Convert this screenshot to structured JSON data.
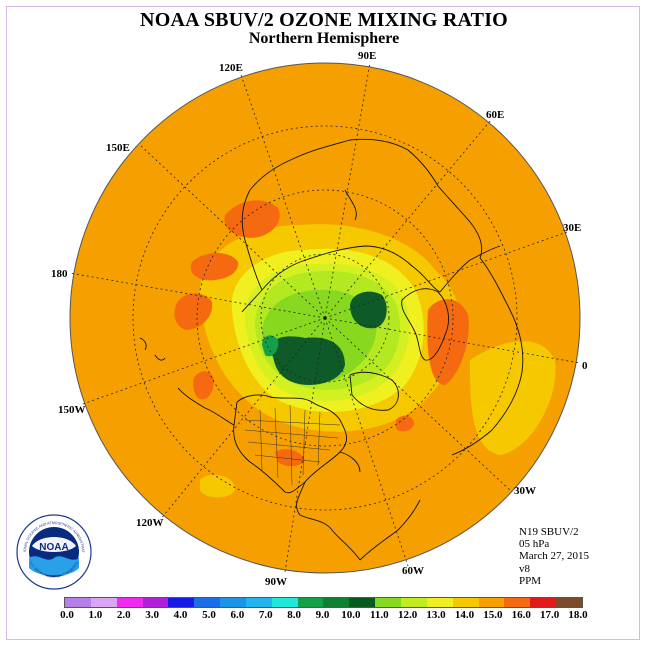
{
  "title": "NOAA SBUV/2 OZONE MIXING RATIO",
  "subtitle": "Northern Hemisphere",
  "longitude_labels": {
    "lon_90e": "90E",
    "lon_60e": "60E",
    "lon_30e": "30E",
    "lon_0": "0",
    "lon_30w": "30W",
    "lon_60w": "60W",
    "lon_90w": "90W",
    "lon_120w": "120W",
    "lon_150w": "150W",
    "lon_180": "180",
    "lon_150e": "150E",
    "lon_120e": "120E"
  },
  "info": {
    "instrument": "N19 SBUV/2",
    "pressure": "05 hPa",
    "date": "March 27, 2015",
    "version": "v8",
    "units": "PPM"
  },
  "colorbar": {
    "labels": [
      "0.0",
      "1.0",
      "2.0",
      "3.0",
      "4.0",
      "5.0",
      "6.0",
      "7.0",
      "8.0",
      "9.0",
      "10.0",
      "11.0",
      "12.0",
      "13.0",
      "14.0",
      "15.0",
      "16.0",
      "17.0",
      "18.0"
    ],
    "colors": [
      "#b77fe8",
      "#d9a6f2",
      "#ee2bee",
      "#b020d8",
      "#1a1ae6",
      "#1a6ee6",
      "#1a95e8",
      "#22b4ee",
      "#1fe8d8",
      "#12a04a",
      "#0e8030",
      "#075a20",
      "#88d820",
      "#c0ec20",
      "#f0f020",
      "#f5c800",
      "#f5a000",
      "#f56a10",
      "#e01a1a",
      "#7a4a2a"
    ]
  },
  "logo": {
    "text": "NOAA",
    "ring_text": "NATIONAL OCEANIC AND ATMOSPHERIC ADMINISTRATION",
    "ring_text_bottom": "U.S. DEPARTMENT OF COMMERCE"
  },
  "colors": {
    "background_field": "#f5a000",
    "high_band": "#f56a10",
    "mid_band": "#f5c800",
    "low_band": "#f0f020",
    "lower_band": "#c0ec20",
    "lowest_band": "#88d820",
    "min_band": "#12a04a",
    "core_band": "#0e5a28"
  }
}
